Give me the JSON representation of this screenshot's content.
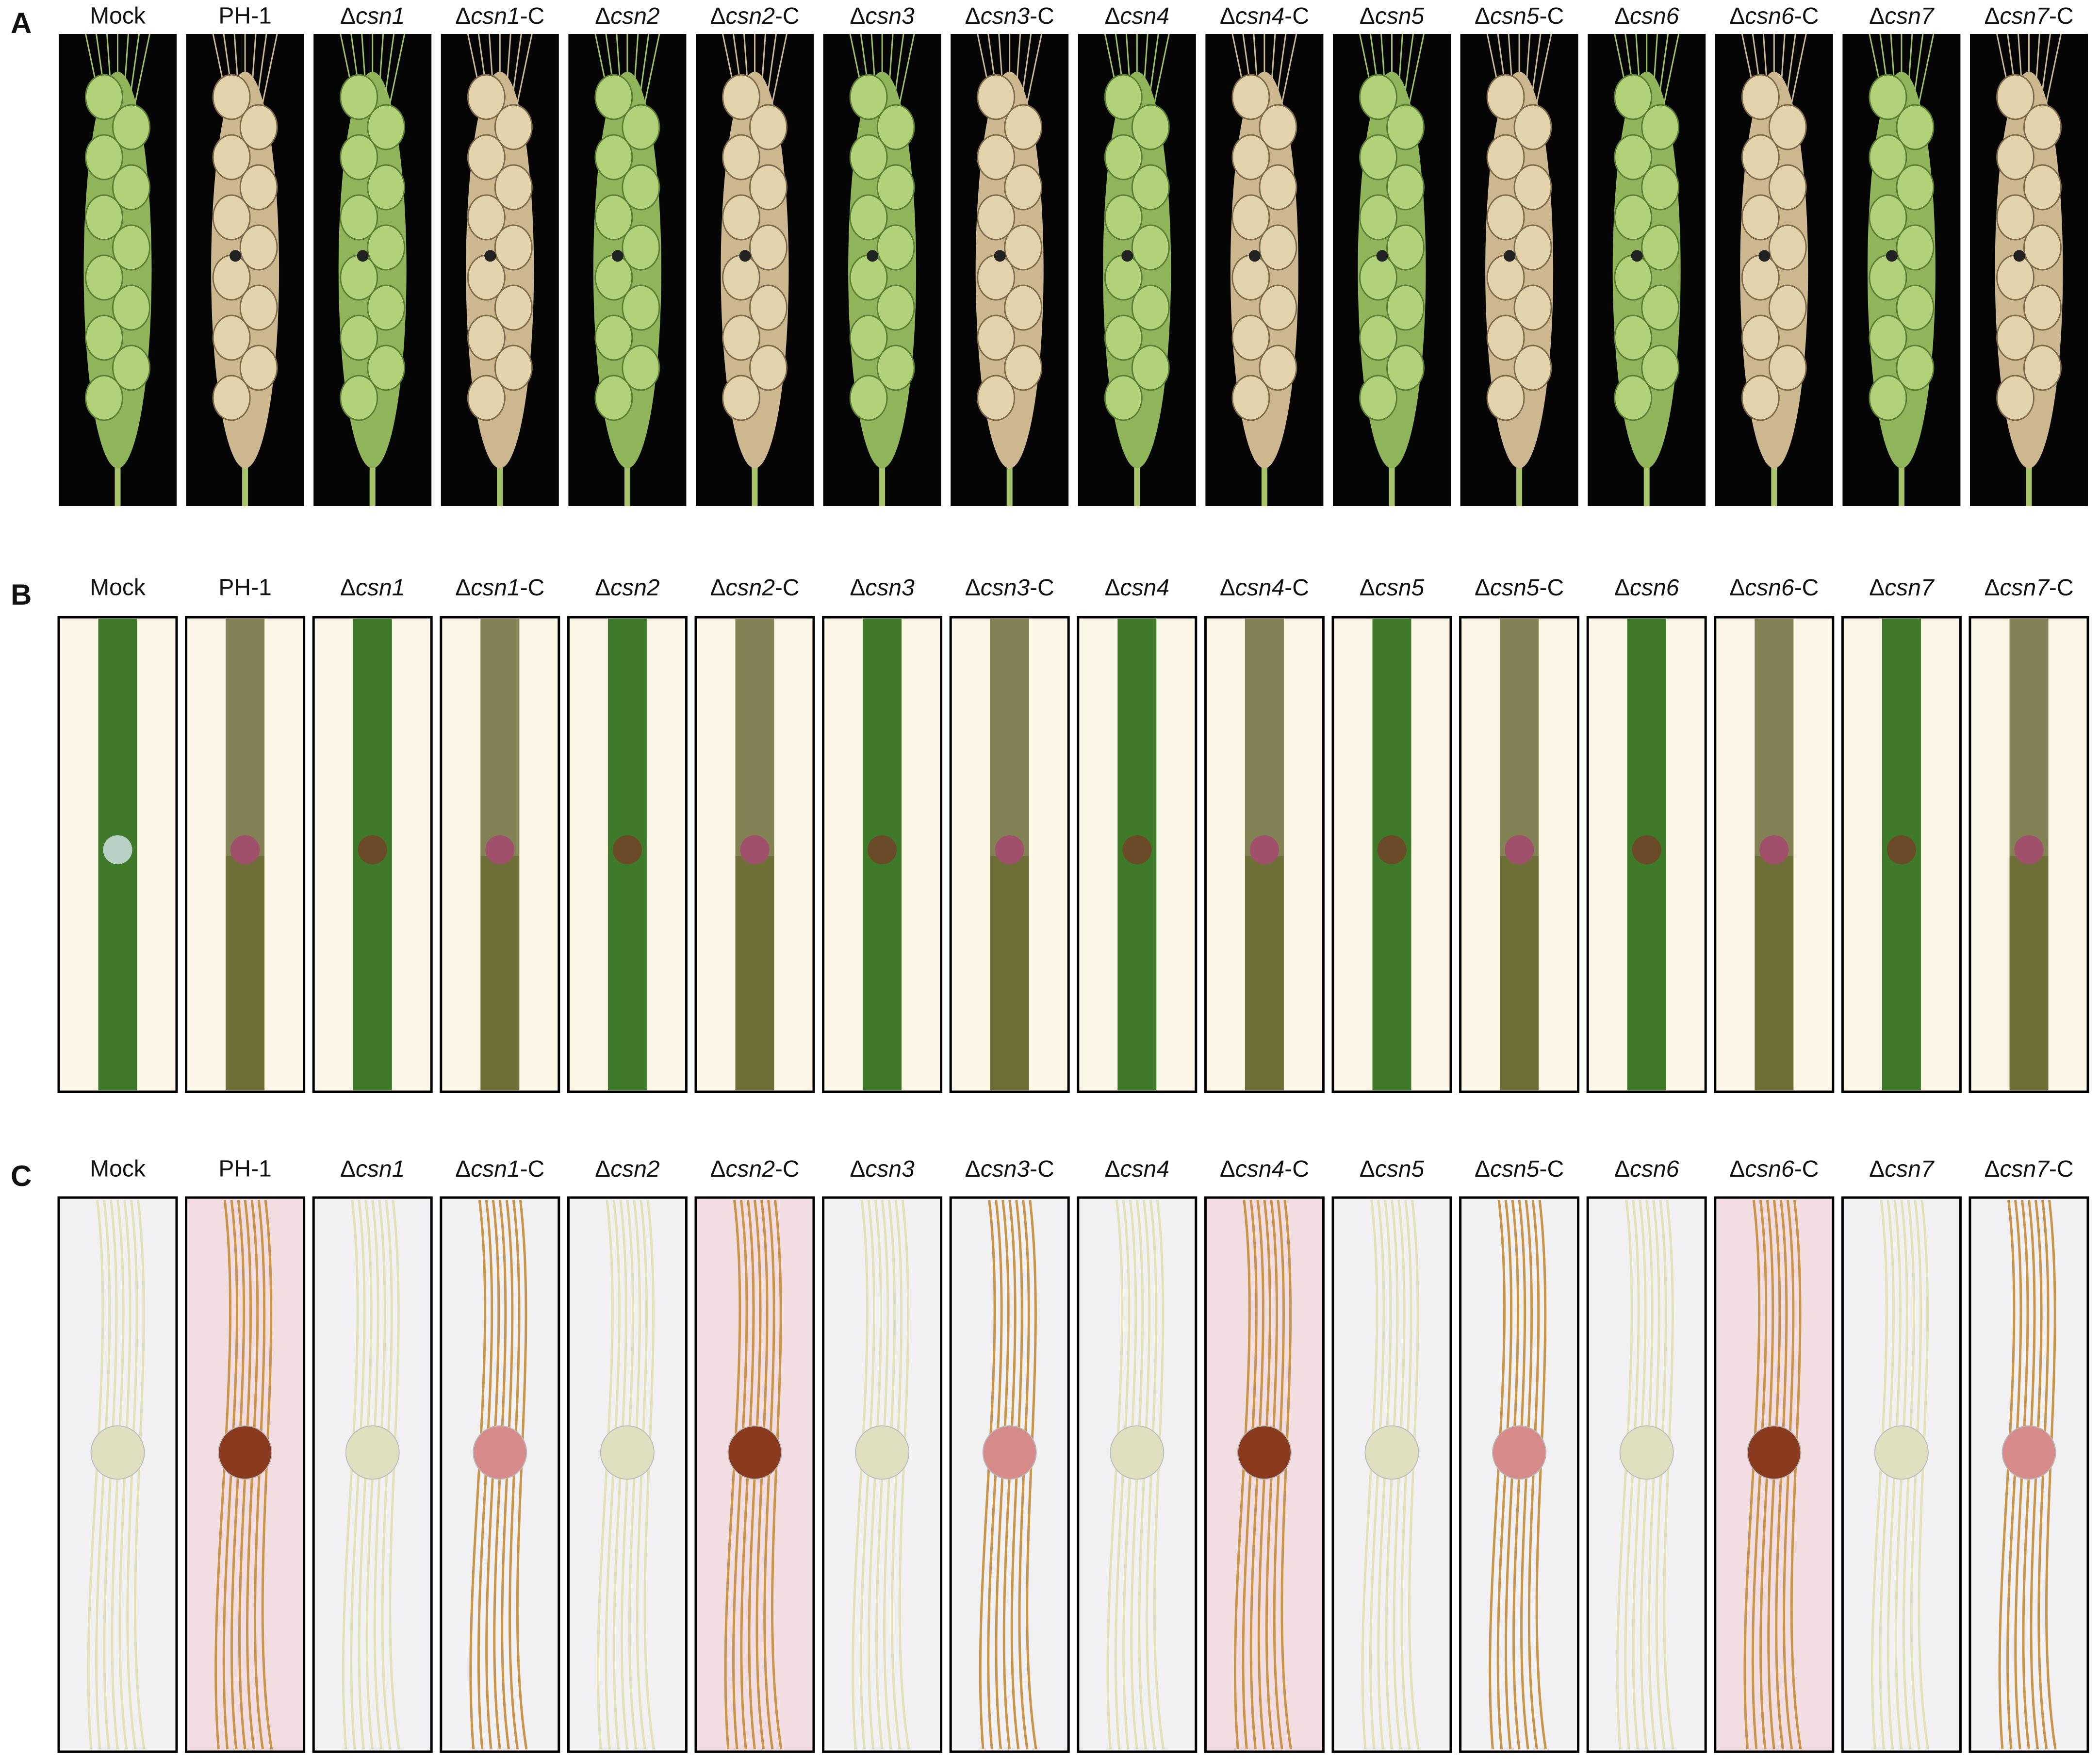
{
  "panels": [
    {
      "letter": "A",
      "labels": [
        "Mock",
        "PH-1",
        "Δcsn1",
        "Δcsn1-C",
        "Δcsn2",
        "Δcsn2-C",
        "Δcsn3",
        "Δcsn3-C",
        "Δcsn4",
        "Δcsn4-C",
        "Δcsn5",
        "Δcsn5-C",
        "Δcsn6",
        "Δcsn6-C",
        "Δcsn7",
        "Δcsn7-C"
      ]
    },
    {
      "letter": "B",
      "labels": [
        "Mock",
        "PH-1",
        "Δcsn1",
        "Δcsn1-C",
        "Δcsn2",
        "Δcsn2-C",
        "Δcsn3",
        "Δcsn3-C",
        "Δcsn4",
        "Δcsn4-C",
        "Δcsn5",
        "Δcsn5-C",
        "Δcsn6",
        "Δcsn6-C",
        "Δcsn7",
        "Δcsn7-C"
      ]
    },
    {
      "letter": "C",
      "labels": [
        "Mock",
        "PH-1",
        "Δcsn1",
        "Δcsn1-C",
        "Δcsn2",
        "Δcsn2-C",
        "Δcsn3",
        "Δcsn3-C",
        "Δcsn4",
        "Δcsn4-C",
        "Δcsn5",
        "Δcsn5-C",
        "Δcsn6",
        "Δcsn6-C",
        "Δcsn7",
        "Δcsn7-C"
      ]
    }
  ]
}
